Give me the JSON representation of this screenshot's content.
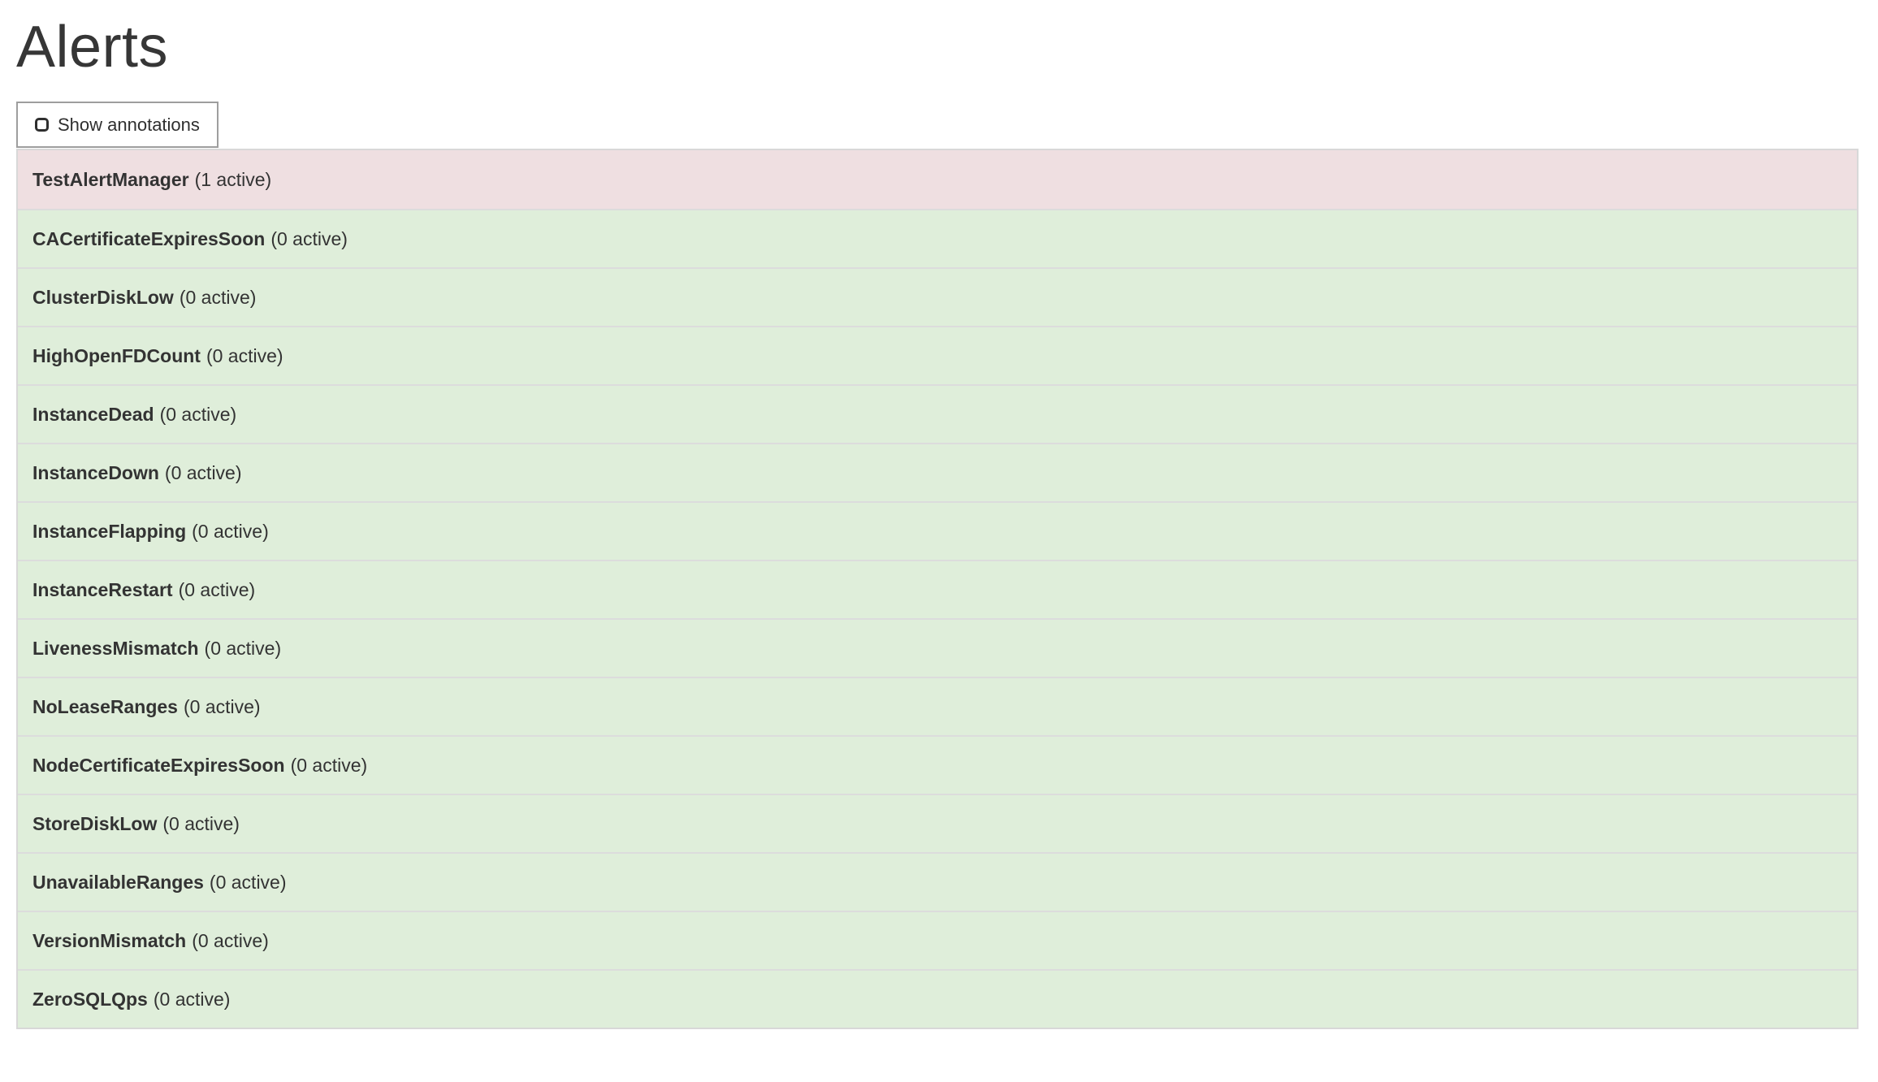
{
  "page": {
    "title": "Alerts"
  },
  "controls": {
    "show_annotations": {
      "label": "Show annotations",
      "checked": false
    }
  },
  "alerts": {
    "rows": [
      {
        "name": "TestAlertManager",
        "count_label": "(1 active)",
        "active": 1,
        "status": "danger"
      },
      {
        "name": "CACertificateExpiresSoon",
        "count_label": "(0 active)",
        "active": 0,
        "status": "success"
      },
      {
        "name": "ClusterDiskLow",
        "count_label": "(0 active)",
        "active": 0,
        "status": "success"
      },
      {
        "name": "HighOpenFDCount",
        "count_label": "(0 active)",
        "active": 0,
        "status": "success"
      },
      {
        "name": "InstanceDead",
        "count_label": "(0 active)",
        "active": 0,
        "status": "success"
      },
      {
        "name": "InstanceDown",
        "count_label": "(0 active)",
        "active": 0,
        "status": "success"
      },
      {
        "name": "InstanceFlapping",
        "count_label": "(0 active)",
        "active": 0,
        "status": "success"
      },
      {
        "name": "InstanceRestart",
        "count_label": "(0 active)",
        "active": 0,
        "status": "success"
      },
      {
        "name": "LivenessMismatch",
        "count_label": "(0 active)",
        "active": 0,
        "status": "success"
      },
      {
        "name": "NoLeaseRanges",
        "count_label": "(0 active)",
        "active": 0,
        "status": "success"
      },
      {
        "name": "NodeCertificateExpiresSoon",
        "count_label": "(0 active)",
        "active": 0,
        "status": "success"
      },
      {
        "name": "StoreDiskLow",
        "count_label": "(0 active)",
        "active": 0,
        "status": "success"
      },
      {
        "name": "UnavailableRanges",
        "count_label": "(0 active)",
        "active": 0,
        "status": "success"
      },
      {
        "name": "VersionMismatch",
        "count_label": "(0 active)",
        "active": 0,
        "status": "success"
      },
      {
        "name": "ZeroSQLQps",
        "count_label": "(0 active)",
        "active": 0,
        "status": "success"
      }
    ]
  },
  "colors": {
    "danger_row_bg": "#efdfe1",
    "success_row_bg": "#dfeeda",
    "row_divider": "#dcdcdc",
    "table_border": "#d8d8d8",
    "row_text": "#333333",
    "button_border": "#9e9e9e"
  }
}
